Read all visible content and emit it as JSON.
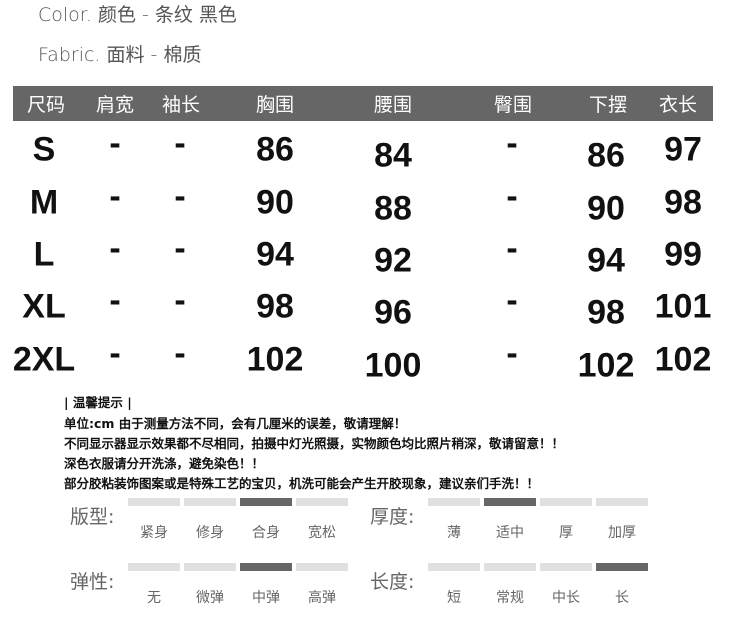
{
  "info": {
    "color": "Color.  颜色 - 条纹 黑色",
    "fabric": "Fabric. 面料 - 棉质"
  },
  "table": {
    "headers": [
      "尺码",
      "肩宽",
      "袖长",
      "胸围",
      "腰围",
      "臀围",
      "下摆",
      "衣长"
    ],
    "rows": [
      [
        "S",
        "-",
        "-",
        "86",
        "84",
        "-",
        "86",
        "97"
      ],
      [
        "M",
        "-",
        "-",
        "90",
        "88",
        "-",
        "90",
        "98"
      ],
      [
        "L",
        "-",
        "-",
        "94",
        "92",
        "-",
        "94",
        "99"
      ],
      [
        "XL",
        "-",
        "-",
        "98",
        "96",
        "-",
        "98",
        "101"
      ],
      [
        "2XL",
        "-",
        "-",
        "102",
        "100",
        "-",
        "102",
        "102"
      ]
    ],
    "header_color": "#666666"
  },
  "tips": {
    "title": "| 温馨提示 |",
    "lines": [
      "单位:cm 由于测量方法不同，会有几厘米的误差，敬请理解！",
      "不同显示器显示效果都不尽相同，拍摄中灯光照摄，实物颜色均比照片稍深，敬请留意！！",
      "深色衣服请分开洗涤，避免染色！！",
      "部分胶粘装饰图案或是特殊工艺的宝贝，机洗可能会产生开胶现象，建议亲们手洗！！"
    ]
  },
  "scales": [
    {
      "label": "版型:",
      "options": [
        "紧身",
        "修身",
        "合身",
        "宽松"
      ],
      "selected": 2
    },
    {
      "label": "厚度:",
      "options": [
        "薄",
        "适中",
        "厚",
        "加厚"
      ],
      "selected": 1
    },
    {
      "label": "弹性:",
      "options": [
        "无",
        "微弹",
        "中弹",
        "高弹"
      ],
      "selected": 2
    },
    {
      "label": "长度:",
      "options": [
        "短",
        "常规",
        "中长",
        "长"
      ],
      "selected": 3
    }
  ]
}
